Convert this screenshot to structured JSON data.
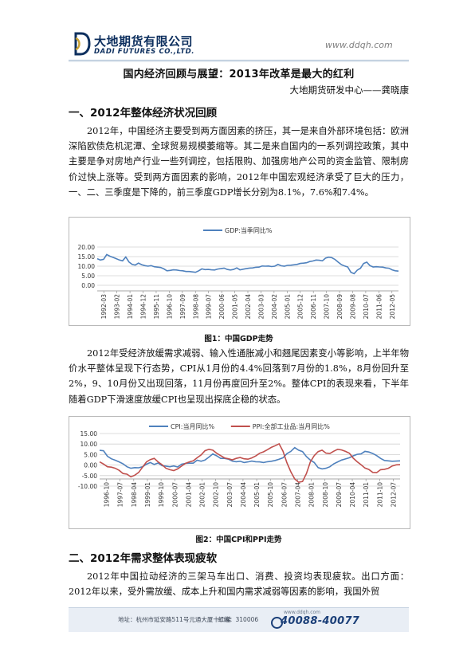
{
  "header": {
    "brand_cn": "大地期货有限公司",
    "brand_en": "DADI FUTURES CO.,LTD.",
    "url": "www.ddqh.com"
  },
  "title": "国内经济回顾与展望：2013年改革是最大的红利",
  "author": "大地期货研发中心——龚晓康",
  "section1": {
    "heading": "一、2012年整体经济状况回顾",
    "para1": "2012年，中国经济主要受到两方面因素的挤压，其一是来自外部环境包括：欧洲深陷欧债危机泥潭、全球贸易规模萎缩等。其二是来自国内的一系列调控政策，其中主要是争对房地产行业一些列调控，包括限购、加强房地产公司的资金监管、限制房价过快上涨等。受到两方面因素的影响，2012年中国宏观经济承受了巨大的压力，一、二、三季度是下降的，前三季度GDP增长分别为8.1%，7.6%和7.4%。",
    "caption1": "图1：中国GDP走势",
    "para2": "2012年受经济放缓需求减弱、输入性通胀减小和翘尾因素变小等影响，上半年物价水平整体呈现下行态势，CPI从1月份的4.4%回落到7月份的1.8%，8月份回升至2%，9、10月份又出现回落，11月份再度回升至2%。整体CPI的表现来看，下半年随着GDP下滑速度放缓CPI也呈现出探底企稳的状态。",
    "caption2": "图2：中国CPI和PPI走势"
  },
  "section2": {
    "heading": "二、2012年需求整体表现疲软",
    "para1": "2012年中国拉动经济的三架马车出口、消费、投资均表现疲软。出口方面：2012年以来，受外需放缓、成本上升和国内需求减弱等因素的影响，我国外贸"
  },
  "footer": {
    "address": "地址：杭州市延安路511号元通大厦十二楼",
    "postcode": "邮编：310006",
    "url": "www.ddqh.com",
    "phone": "40088-40077"
  },
  "chart_data": [
    {
      "type": "line",
      "series": [
        {
          "name": "GDP:当季同比%",
          "color": "#4f81bd",
          "values": [
            13.9,
            13.2,
            13.6,
            16.1,
            15.2,
            14.6,
            13.9,
            13.2,
            12.8,
            14.8,
            12.2,
            10.9,
            10.6,
            11.6,
            10.8,
            10.3,
            10.0,
            10.3,
            9.7,
            9.5,
            9.3,
            8.6,
            7.6,
            7.8,
            8.1,
            8.0,
            7.7,
            7.6,
            7.2,
            7.2,
            7.0,
            6.8,
            7.6,
            8.6,
            8.2,
            8.3,
            8.1,
            8.0,
            8.5,
            8.7,
            9.0,
            8.3,
            8.0,
            8.3,
            9.1,
            8.1,
            8.4,
            8.7,
            9.0,
            9.1,
            9.4,
            9.5,
            10.1,
            10.0,
            10.1,
            9.8,
            10.0,
            10.9,
            10.2,
            10.0,
            10.4,
            10.5,
            10.7,
            10.9,
            11.4,
            11.6,
            11.8,
            12.4,
            12.7,
            13.2,
            13.1,
            12.8,
            14.2,
            14.7,
            14.4,
            13.5,
            12.1,
            10.8,
            10.1,
            9.6,
            6.8,
            6.1,
            7.9,
            8.9,
            11.4,
            12.1,
            10.3,
            9.6,
            9.7,
            9.6,
            9.5,
            9.1,
            8.9,
            8.1,
            7.6,
            7.4
          ]
        }
      ],
      "x_tick_labels": [
        "1992-03",
        "1993-02",
        "1994-01",
        "1994-12",
        "1995-11",
        "1996-10",
        "1997-09",
        "1998-08",
        "1999-07",
        "2000-06",
        "2001-05",
        "2002-04",
        "2003-03",
        "2004-02",
        "2005-01",
        "2005-12",
        "2006-11",
        "2007-10",
        "2008-09",
        "2009-08",
        "2010-07",
        "2011-06",
        "2012-05"
      ],
      "y_tick_labels": [
        "0.00",
        "5.00",
        "10.00",
        "15.00",
        "20.00"
      ],
      "ylim": [
        0,
        20
      ],
      "grid": true,
      "legend": "top"
    },
    {
      "type": "line",
      "series": [
        {
          "name": "CPI:当月同比%",
          "color": "#4f81bd",
          "values": [
            7.0,
            6.8,
            4.2,
            3.0,
            2.3,
            1.5,
            0.6,
            -0.8,
            -1.5,
            -1.2,
            -1.3,
            -0.8,
            0.4,
            1.2,
            0.3,
            1.0,
            -0.3,
            -0.5,
            -0.8,
            -0.4,
            -0.9,
            0.4,
            0.8,
            0.9,
            0.9,
            2.3,
            1.8,
            2.4,
            3.8,
            5.3,
            4.4,
            3.2,
            3.2,
            2.8,
            1.9,
            1.6,
            1.8,
            1.2,
            1.5,
            1.9,
            1.6,
            1.5,
            1.2,
            1.6,
            1.8,
            2.2,
            2.8,
            3.5,
            5.4,
            6.5,
            8.3,
            7.1,
            6.4,
            4.0,
            2.4,
            1.2,
            -1.2,
            -1.8,
            -1.5,
            -0.8,
            0.6,
            1.5,
            2.4,
            2.9,
            3.5,
            4.4,
            5.1,
            5.3,
            6.5,
            6.2,
            5.5,
            4.5,
            3.2,
            2.2,
            2.0,
            1.8,
            1.9,
            2.0
          ]
        },
        {
          "name": "PPI:全部工业品:当月同比%",
          "color": "#c0504d",
          "values": [
            1.5,
            0.5,
            -0.8,
            -1.0,
            -1.5,
            -2.5,
            -4.0,
            -4.3,
            -5.6,
            -4.8,
            -3.5,
            -1.0,
            1.5,
            2.6,
            3.2,
            1.5,
            0.2,
            -1.5,
            -2.2,
            -2.6,
            -1.8,
            -0.5,
            0.8,
            1.5,
            2.0,
            3.5,
            4.8,
            6.8,
            7.5,
            7.1,
            5.6,
            4.5,
            3.4,
            3.0,
            2.5,
            3.2,
            3.6,
            3.0,
            2.8,
            3.4,
            4.3,
            5.6,
            6.3,
            7.3,
            8.4,
            9.2,
            10.1,
            6.6,
            1.1,
            -3.2,
            -6.6,
            -8.2,
            -7.8,
            -4.0,
            1.5,
            4.5,
            6.4,
            7.1,
            5.7,
            5.5,
            6.6,
            7.5,
            7.2,
            6.5,
            5.6,
            3.3,
            1.6,
            0.2,
            -1.4,
            -2.1,
            -3.5,
            -3.6,
            -2.2,
            -2.0,
            -1.5,
            -0.4,
            0.1,
            0.2
          ]
        }
      ],
      "x_tick_labels": [
        "1996-10",
        "1997-07",
        "1998-04",
        "1999-01",
        "1999-10",
        "2000-07",
        "2001-04",
        "2002-01",
        "2002-10",
        "2003-07",
        "2004-04",
        "2005-01",
        "2005-10",
        "2006-07",
        "2007-04",
        "2008-01",
        "2008-10",
        "2009-07",
        "2010-04",
        "2011-01",
        "2011-10",
        "2012-07"
      ],
      "y_tick_labels": [
        "-10.00",
        "-5.00",
        "0.00",
        "5.00",
        "10.00",
        "15.00"
      ],
      "ylim": [
        -10,
        15
      ],
      "grid": true,
      "legend": "top"
    }
  ]
}
